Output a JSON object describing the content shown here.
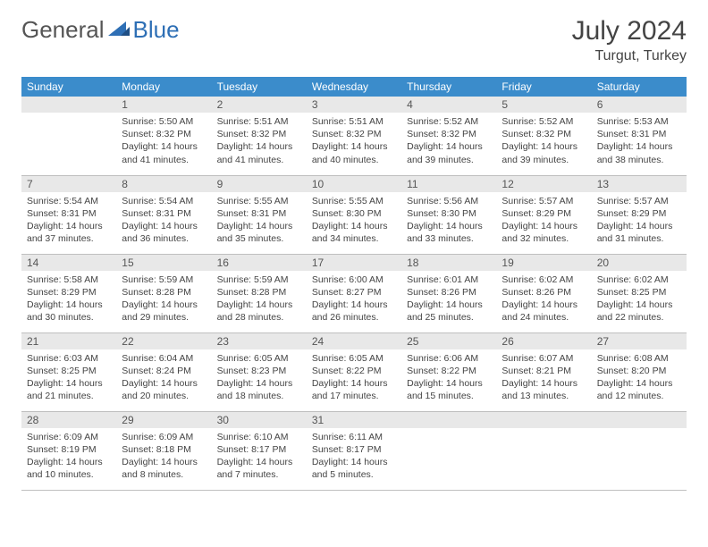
{
  "logo": {
    "part1": "General",
    "part2": "Blue"
  },
  "title": "July 2024",
  "location": "Turgut, Turkey",
  "colors": {
    "header_bg": "#3b8ccb",
    "header_text": "#ffffff",
    "daynum_bg": "#e8e8e8",
    "border": "#bfbfbf",
    "logo_accent": "#2e6fb5"
  },
  "day_headers": [
    "Sunday",
    "Monday",
    "Tuesday",
    "Wednesday",
    "Thursday",
    "Friday",
    "Saturday"
  ],
  "weeks": [
    [
      {
        "num": "",
        "sunrise": "",
        "sunset": "",
        "daylight": ""
      },
      {
        "num": "1",
        "sunrise": "Sunrise: 5:50 AM",
        "sunset": "Sunset: 8:32 PM",
        "daylight": "Daylight: 14 hours and 41 minutes."
      },
      {
        "num": "2",
        "sunrise": "Sunrise: 5:51 AM",
        "sunset": "Sunset: 8:32 PM",
        "daylight": "Daylight: 14 hours and 41 minutes."
      },
      {
        "num": "3",
        "sunrise": "Sunrise: 5:51 AM",
        "sunset": "Sunset: 8:32 PM",
        "daylight": "Daylight: 14 hours and 40 minutes."
      },
      {
        "num": "4",
        "sunrise": "Sunrise: 5:52 AM",
        "sunset": "Sunset: 8:32 PM",
        "daylight": "Daylight: 14 hours and 39 minutes."
      },
      {
        "num": "5",
        "sunrise": "Sunrise: 5:52 AM",
        "sunset": "Sunset: 8:32 PM",
        "daylight": "Daylight: 14 hours and 39 minutes."
      },
      {
        "num": "6",
        "sunrise": "Sunrise: 5:53 AM",
        "sunset": "Sunset: 8:31 PM",
        "daylight": "Daylight: 14 hours and 38 minutes."
      }
    ],
    [
      {
        "num": "7",
        "sunrise": "Sunrise: 5:54 AM",
        "sunset": "Sunset: 8:31 PM",
        "daylight": "Daylight: 14 hours and 37 minutes."
      },
      {
        "num": "8",
        "sunrise": "Sunrise: 5:54 AM",
        "sunset": "Sunset: 8:31 PM",
        "daylight": "Daylight: 14 hours and 36 minutes."
      },
      {
        "num": "9",
        "sunrise": "Sunrise: 5:55 AM",
        "sunset": "Sunset: 8:31 PM",
        "daylight": "Daylight: 14 hours and 35 minutes."
      },
      {
        "num": "10",
        "sunrise": "Sunrise: 5:55 AM",
        "sunset": "Sunset: 8:30 PM",
        "daylight": "Daylight: 14 hours and 34 minutes."
      },
      {
        "num": "11",
        "sunrise": "Sunrise: 5:56 AM",
        "sunset": "Sunset: 8:30 PM",
        "daylight": "Daylight: 14 hours and 33 minutes."
      },
      {
        "num": "12",
        "sunrise": "Sunrise: 5:57 AM",
        "sunset": "Sunset: 8:29 PM",
        "daylight": "Daylight: 14 hours and 32 minutes."
      },
      {
        "num": "13",
        "sunrise": "Sunrise: 5:57 AM",
        "sunset": "Sunset: 8:29 PM",
        "daylight": "Daylight: 14 hours and 31 minutes."
      }
    ],
    [
      {
        "num": "14",
        "sunrise": "Sunrise: 5:58 AM",
        "sunset": "Sunset: 8:29 PM",
        "daylight": "Daylight: 14 hours and 30 minutes."
      },
      {
        "num": "15",
        "sunrise": "Sunrise: 5:59 AM",
        "sunset": "Sunset: 8:28 PM",
        "daylight": "Daylight: 14 hours and 29 minutes."
      },
      {
        "num": "16",
        "sunrise": "Sunrise: 5:59 AM",
        "sunset": "Sunset: 8:28 PM",
        "daylight": "Daylight: 14 hours and 28 minutes."
      },
      {
        "num": "17",
        "sunrise": "Sunrise: 6:00 AM",
        "sunset": "Sunset: 8:27 PM",
        "daylight": "Daylight: 14 hours and 26 minutes."
      },
      {
        "num": "18",
        "sunrise": "Sunrise: 6:01 AM",
        "sunset": "Sunset: 8:26 PM",
        "daylight": "Daylight: 14 hours and 25 minutes."
      },
      {
        "num": "19",
        "sunrise": "Sunrise: 6:02 AM",
        "sunset": "Sunset: 8:26 PM",
        "daylight": "Daylight: 14 hours and 24 minutes."
      },
      {
        "num": "20",
        "sunrise": "Sunrise: 6:02 AM",
        "sunset": "Sunset: 8:25 PM",
        "daylight": "Daylight: 14 hours and 22 minutes."
      }
    ],
    [
      {
        "num": "21",
        "sunrise": "Sunrise: 6:03 AM",
        "sunset": "Sunset: 8:25 PM",
        "daylight": "Daylight: 14 hours and 21 minutes."
      },
      {
        "num": "22",
        "sunrise": "Sunrise: 6:04 AM",
        "sunset": "Sunset: 8:24 PM",
        "daylight": "Daylight: 14 hours and 20 minutes."
      },
      {
        "num": "23",
        "sunrise": "Sunrise: 6:05 AM",
        "sunset": "Sunset: 8:23 PM",
        "daylight": "Daylight: 14 hours and 18 minutes."
      },
      {
        "num": "24",
        "sunrise": "Sunrise: 6:05 AM",
        "sunset": "Sunset: 8:22 PM",
        "daylight": "Daylight: 14 hours and 17 minutes."
      },
      {
        "num": "25",
        "sunrise": "Sunrise: 6:06 AM",
        "sunset": "Sunset: 8:22 PM",
        "daylight": "Daylight: 14 hours and 15 minutes."
      },
      {
        "num": "26",
        "sunrise": "Sunrise: 6:07 AM",
        "sunset": "Sunset: 8:21 PM",
        "daylight": "Daylight: 14 hours and 13 minutes."
      },
      {
        "num": "27",
        "sunrise": "Sunrise: 6:08 AM",
        "sunset": "Sunset: 8:20 PM",
        "daylight": "Daylight: 14 hours and 12 minutes."
      }
    ],
    [
      {
        "num": "28",
        "sunrise": "Sunrise: 6:09 AM",
        "sunset": "Sunset: 8:19 PM",
        "daylight": "Daylight: 14 hours and 10 minutes."
      },
      {
        "num": "29",
        "sunrise": "Sunrise: 6:09 AM",
        "sunset": "Sunset: 8:18 PM",
        "daylight": "Daylight: 14 hours and 8 minutes."
      },
      {
        "num": "30",
        "sunrise": "Sunrise: 6:10 AM",
        "sunset": "Sunset: 8:17 PM",
        "daylight": "Daylight: 14 hours and 7 minutes."
      },
      {
        "num": "31",
        "sunrise": "Sunrise: 6:11 AM",
        "sunset": "Sunset: 8:17 PM",
        "daylight": "Daylight: 14 hours and 5 minutes."
      },
      {
        "num": "",
        "sunrise": "",
        "sunset": "",
        "daylight": ""
      },
      {
        "num": "",
        "sunrise": "",
        "sunset": "",
        "daylight": ""
      },
      {
        "num": "",
        "sunrise": "",
        "sunset": "",
        "daylight": ""
      }
    ]
  ]
}
